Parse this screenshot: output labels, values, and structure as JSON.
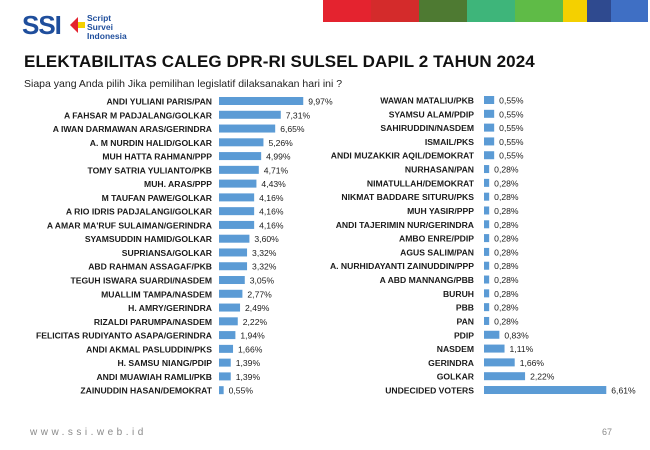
{
  "header": {
    "logo_text": "SSI",
    "logo_tagline": [
      "Script",
      "Survei",
      "Indonesia"
    ],
    "strip_colors": [
      "#e4232f",
      "#d42b2b",
      "#4e7a32",
      "#3eb57a",
      "#5fbb47",
      "#f4d000",
      "#2f4a8f",
      "#3f6fc4"
    ]
  },
  "title": "ELEKTABILITAS CALEG DPR-RI SULSEL DAPIL 2 TAHUN 2024",
  "subtitle": "Siapa yang Anda pilih Jika pemilihan  legislatif dilaksanakan hari ini ?",
  "footer": {
    "url": "www.ssi.web.id",
    "page": "67"
  },
  "chart_data": [
    {
      "type": "bar",
      "orientation": "horizontal",
      "bar_color": "#5b9bd5",
      "value_suffix": "%",
      "decimal_separator": ",",
      "categories": [
        "ANDI YULIANI PARIS/PAN",
        "A FAHSAR M PADJALANG/GOLKAR",
        "A IWAN DARMAWAN ARAS/GERINDRA",
        "A. M NURDIN HALID/GOLKAR",
        "MUH HATTA RAHMAN/PPP",
        "TOMY SATRIA YULIANTO/PKB",
        "MUH. ARAS/PPP",
        "M TAUFAN PAWE/GOLKAR",
        "A RIO IDRIS PADJALANGI/GOLKAR",
        "A AMAR MA'RUF SULAIMAN/GERINDRA",
        "SYAMSUDDIN HAMID/GOLKAR",
        "SUPRIANSA/GOLKAR",
        "ABD RAHMAN ASSAGAF/PKB",
        "TEGUH ISWARA SUARDI/NASDEM",
        "MUALLIM TAMPA/NASDEM",
        "H. AMRY/GERINDRA",
        "RIZALDI PARUMPA/NASDEM",
        "FELICITAS RUDIYANTO ASAPA/GERINDRA",
        "ANDI AKMAL PASLUDDIN/PKS",
        "H. SAMSU NIANG/PDIP",
        "ANDI MUAWIAH RAMLI/PKB",
        "ZAINUDDIN HASAN/DEMOKRAT"
      ],
      "values": [
        9.97,
        7.31,
        6.65,
        5.26,
        4.99,
        4.71,
        4.43,
        4.16,
        4.16,
        4.16,
        3.6,
        3.32,
        3.32,
        3.05,
        2.77,
        2.49,
        2.22,
        1.94,
        1.66,
        1.39,
        1.39,
        0.55
      ],
      "labels": [
        "9,97%",
        "7,31%",
        "6,65%",
        "5,26%",
        "4,99%",
        "4,71%",
        "4,43%",
        "4,16%",
        "4,16%",
        "4,16%",
        "3,60%",
        "3,32%",
        "3,32%",
        "3,05%",
        "2,77%",
        "2,49%",
        "2,22%",
        "1,94%",
        "1,66%",
        "1,39%",
        "1,39%",
        "0,55%"
      ]
    },
    {
      "type": "bar",
      "orientation": "horizontal",
      "bar_color": "#5b9bd5",
      "value_suffix": "%",
      "decimal_separator": ",",
      "categories": [
        "WAWAN MATALIU/PKB",
        "SYAMSU ALAM/PDIP",
        "SAHIRUDDIN/NASDEM",
        "ISMAIL/PKS",
        "ANDI MUZAKKIR AQIL/DEMOKRAT",
        "NURHASAN/PAN",
        "NIMATULLAH/DEMOKRAT",
        "NIKMAT BADDARE SITURU/PKS",
        "MUH YASIR/PPP",
        "ANDI TAJERIMIN NUR/GERINDRA",
        "AMBO ENRE/PDIP",
        "AGUS SALIM/PAN",
        "A. NURHIDAYANTI ZAINUDDIN/PPP",
        "A ABD MANNANG/PBB",
        "BURUH",
        "PBB",
        "PAN",
        "PDIP",
        "NASDEM",
        "GERINDRA",
        "GOLKAR",
        "UNDECIDED VOTERS"
      ],
      "values": [
        0.55,
        0.55,
        0.55,
        0.55,
        0.55,
        0.28,
        0.28,
        0.28,
        0.28,
        0.28,
        0.28,
        0.28,
        0.28,
        0.28,
        0.28,
        0.28,
        0.28,
        0.83,
        1.11,
        1.66,
        2.22,
        6.61
      ],
      "labels": [
        "0,55%",
        "0,55%",
        "0,55%",
        "0,55%",
        "0,55%",
        "0,28%",
        "0,28%",
        "0,28%",
        "0,28%",
        "0,28%",
        "0,28%",
        "0,28%",
        "0,28%",
        "0,28%",
        "0,28%",
        "0,28%",
        "0,28%",
        "0,83%",
        "1,11%",
        "1,66%",
        "2,22%",
        "6,61%"
      ]
    }
  ]
}
